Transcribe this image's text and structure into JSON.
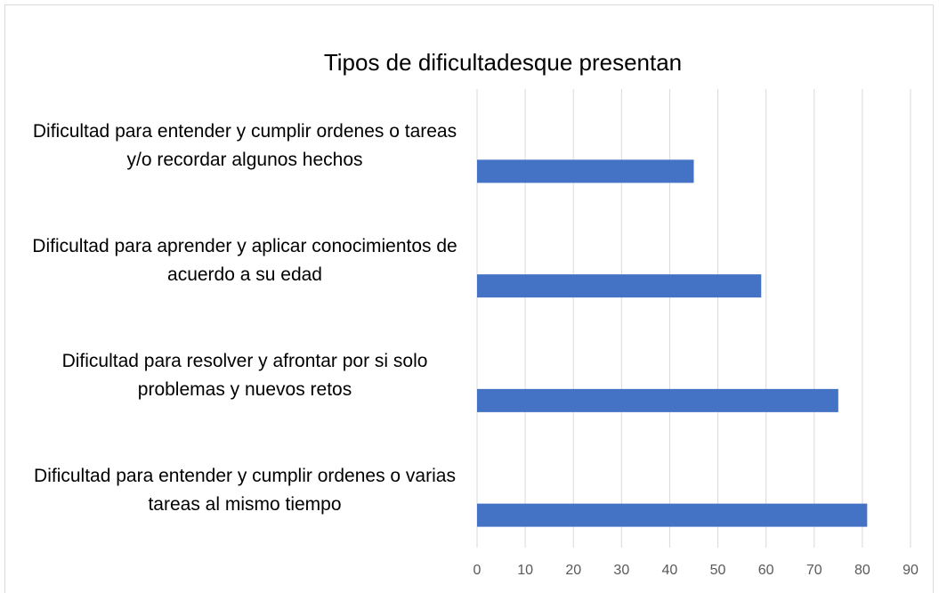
{
  "chart_data": {
    "type": "barh",
    "title": "Tipos de dificultadesque presentan",
    "categories": [
      "Dificultad para entender y cumplir ordenes o tareas y/o recordar algunos hechos",
      "Dificultad para aprender y aplicar conocimientos de acuerdo a su edad",
      "Dificultad para resolver y afrontar por si solo problemas y nuevos retos",
      "Dificultad para entender y cumplir ordenes o varias tareas al mismo tiempo"
    ],
    "values": [
      45,
      59,
      75,
      81
    ],
    "color": "#4472c4",
    "xlim": [
      0,
      90
    ],
    "xticks": [
      0,
      10,
      20,
      30,
      40,
      50,
      60,
      70,
      80,
      90
    ],
    "grid": true
  }
}
